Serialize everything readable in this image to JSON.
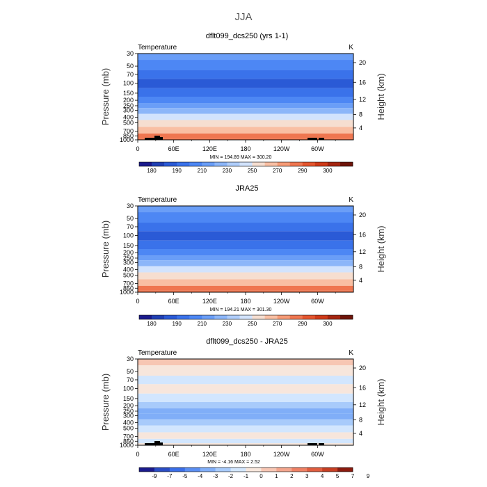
{
  "figure": {
    "title": "JJA"
  },
  "chart_data": [
    {
      "type": "heatmap",
      "title": "dflt099_dcs250 (yrs 1-1)",
      "left_label": "Temperature",
      "right_label": "K",
      "ylabel": "Pressure (mb)",
      "y2label": "Height (km)",
      "x_ticks": [
        "0",
        "60E",
        "120E",
        "180",
        "120W",
        "60W"
      ],
      "y_ticks": [
        "30",
        "50",
        "70",
        "100",
        "150",
        "200",
        "250",
        "300",
        "400",
        "500",
        "700",
        "850",
        "1000"
      ],
      "y2_ticks": [
        "20",
        "16",
        "12",
        "8",
        "4"
      ],
      "min_max": "MIN = 194.89   MAX = 300.20",
      "colorbar_labels": [
        "180",
        "190",
        "210",
        "230",
        "250",
        "270",
        "290",
        "300"
      ],
      "has_topography": true,
      "bands": [
        {
          "level": 30,
          "value": 225
        },
        {
          "level": 50,
          "value": 212
        },
        {
          "level": 70,
          "value": 205
        },
        {
          "level": 100,
          "value": 198
        },
        {
          "level": 150,
          "value": 206
        },
        {
          "level": 200,
          "value": 218
        },
        {
          "level": 250,
          "value": 228
        },
        {
          "level": 300,
          "value": 236
        },
        {
          "level": 400,
          "value": 250
        },
        {
          "level": 500,
          "value": 262
        },
        {
          "level": 700,
          "value": 278
        },
        {
          "level": 850,
          "value": 290
        },
        {
          "level": 1000,
          "value": 298
        }
      ]
    },
    {
      "type": "heatmap",
      "title": "JRA25",
      "left_label": "Temperature",
      "right_label": "K",
      "ylabel": "Pressure (mb)",
      "y2label": "Height (km)",
      "x_ticks": [
        "0",
        "60E",
        "120E",
        "180",
        "120W",
        "60W"
      ],
      "y_ticks": [
        "30",
        "50",
        "70",
        "100",
        "150",
        "200",
        "250",
        "300",
        "400",
        "500",
        "700",
        "850",
        "1000"
      ],
      "y2_ticks": [
        "20",
        "16",
        "12",
        "8",
        "4"
      ],
      "min_max": "MIN = 194.21   MAX = 301.30",
      "colorbar_labels": [
        "180",
        "190",
        "210",
        "230",
        "250",
        "270",
        "290",
        "300"
      ],
      "has_topography": false,
      "bands": [
        {
          "level": 30,
          "value": 224
        },
        {
          "level": 50,
          "value": 213
        },
        {
          "level": 70,
          "value": 206
        },
        {
          "level": 100,
          "value": 198
        },
        {
          "level": 150,
          "value": 207
        },
        {
          "level": 200,
          "value": 219
        },
        {
          "level": 250,
          "value": 229
        },
        {
          "level": 300,
          "value": 238
        },
        {
          "level": 400,
          "value": 251
        },
        {
          "level": 500,
          "value": 263
        },
        {
          "level": 700,
          "value": 279
        },
        {
          "level": 850,
          "value": 291
        },
        {
          "level": 1000,
          "value": 299
        }
      ]
    },
    {
      "type": "heatmap",
      "title": "dflt099_dcs250 - JRA25",
      "left_label": "Temperature",
      "right_label": "K",
      "ylabel": "Pressure (mb)",
      "y2label": "Height (km)",
      "x_ticks": [
        "0",
        "60E",
        "120E",
        "180",
        "120W",
        "60W"
      ],
      "y_ticks": [
        "30",
        "50",
        "70",
        "100",
        "150",
        "200",
        "250",
        "300",
        "400",
        "500",
        "700",
        "850",
        "1000"
      ],
      "y2_ticks": [
        "20",
        "16",
        "12",
        "8",
        "4"
      ],
      "min_max": "MIN =  -4.16   MAX =    2.52",
      "colorbar_labels": [
        "-9",
        "-7",
        "-5",
        "-4",
        "-3",
        "-2",
        "-1",
        "0",
        "1",
        "2",
        "3",
        "4",
        "5",
        "7",
        "9"
      ],
      "has_topography": true,
      "bands": [
        {
          "level": 30,
          "value": 0.5
        },
        {
          "level": 50,
          "value": -0.5
        },
        {
          "level": 70,
          "value": -1.5
        },
        {
          "level": 100,
          "value": -0.5
        },
        {
          "level": 150,
          "value": -1.5
        },
        {
          "level": 200,
          "value": -2.5
        },
        {
          "level": 250,
          "value": -3.5
        },
        {
          "level": 300,
          "value": -3.5
        },
        {
          "level": 400,
          "value": -2.5
        },
        {
          "level": 500,
          "value": -1.5
        },
        {
          "level": 700,
          "value": -0.5
        },
        {
          "level": 850,
          "value": -1.5
        },
        {
          "level": 1000,
          "value": -0.5
        }
      ]
    }
  ]
}
